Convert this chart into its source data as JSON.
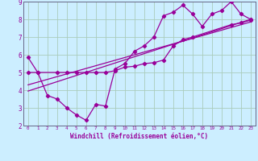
{
  "xlabel": "Windchill (Refroidissement éolien,°C)",
  "bg_color": "#cceeff",
  "grid_color": "#aaccbb",
  "line_color": "#990099",
  "spine_color": "#666688",
  "xlim": [
    -0.5,
    23.5
  ],
  "ylim": [
    2,
    9
  ],
  "xticks": [
    0,
    1,
    2,
    3,
    4,
    5,
    6,
    7,
    8,
    9,
    10,
    11,
    12,
    13,
    14,
    15,
    16,
    17,
    18,
    19,
    20,
    21,
    22,
    23
  ],
  "yticks": [
    2,
    3,
    4,
    5,
    6,
    7,
    8,
    9
  ],
  "series1_x": [
    0,
    1,
    2,
    3,
    4,
    5,
    6,
    7,
    8,
    9,
    10,
    11,
    12,
    13,
    14,
    15,
    16,
    17,
    18,
    19,
    20,
    21,
    22,
    23
  ],
  "series1_y": [
    5.85,
    5.0,
    3.7,
    3.5,
    3.0,
    2.6,
    2.3,
    3.2,
    3.1,
    5.2,
    5.5,
    6.2,
    6.5,
    7.0,
    8.2,
    8.4,
    8.8,
    8.3,
    7.6,
    8.3,
    8.5,
    9.0,
    8.3,
    8.0
  ],
  "series2_x": [
    0,
    1,
    3,
    4,
    5,
    6,
    7,
    8,
    9,
    10,
    11,
    12,
    13,
    14,
    15,
    16,
    17,
    21,
    22,
    23
  ],
  "series2_y": [
    5.0,
    5.0,
    5.0,
    5.0,
    5.0,
    5.0,
    5.0,
    5.0,
    5.1,
    5.3,
    5.35,
    5.5,
    5.55,
    5.7,
    6.5,
    6.85,
    7.0,
    7.7,
    7.8,
    7.95
  ],
  "series3_x": [
    0,
    23
  ],
  "series3_y": [
    4.3,
    7.85
  ],
  "series4_x": [
    0,
    23
  ],
  "series4_y": [
    3.95,
    8.0
  ]
}
